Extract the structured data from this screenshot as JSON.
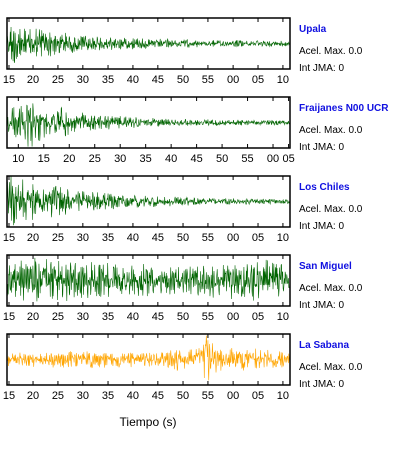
{
  "chart_data": {
    "type": "line",
    "xlabel": "Tiempo (s)",
    "panels": [
      {
        "station": "Upala",
        "accel_label": "Acel. Max. 0.0",
        "jma_label": "Int JMA: 0",
        "color": "#006400",
        "tick_labels": [
          "15",
          "20",
          "25",
          "30",
          "35",
          "40",
          "45",
          "50",
          "55",
          "00",
          "05",
          "10"
        ],
        "envelope": [
          [
            0,
            0.95
          ],
          [
            0.06,
            0.7
          ],
          [
            0.15,
            0.45
          ],
          [
            0.3,
            0.28
          ],
          [
            0.5,
            0.18
          ],
          [
            0.75,
            0.12
          ],
          [
            1,
            0.1
          ]
        ]
      },
      {
        "station": "Fraijanes N00 UCR",
        "accel_label": "Acel. Max. 0.0",
        "jma_label": "Int JMA: 0",
        "color": "#006400",
        "tick_labels": [
          "10",
          "15",
          "20",
          "25",
          "30",
          "35",
          "40",
          "45",
          "50",
          "55",
          "00",
          "05"
        ],
        "envelope": [
          [
            0,
            0.25
          ],
          [
            0.04,
            0.9
          ],
          [
            0.1,
            0.85
          ],
          [
            0.2,
            0.5
          ],
          [
            0.35,
            0.25
          ],
          [
            0.6,
            0.13
          ],
          [
            1,
            0.08
          ]
        ]
      },
      {
        "station": "Los Chiles",
        "accel_label": "Acel. Max. 0.0",
        "jma_label": "Int JMA: 0",
        "color": "#006400",
        "tick_labels": [
          "15",
          "20",
          "25",
          "30",
          "35",
          "40",
          "45",
          "50",
          "55",
          "00",
          "05",
          "10"
        ],
        "envelope": [
          [
            0,
            0.95
          ],
          [
            0.1,
            0.75
          ],
          [
            0.22,
            0.45
          ],
          [
            0.4,
            0.25
          ],
          [
            0.7,
            0.12
          ],
          [
            1,
            0.08
          ]
        ]
      },
      {
        "station": "San Miguel",
        "accel_label": "Acel. Max. 0.0",
        "jma_label": "Int JMA: 0",
        "color": "#006400",
        "tick_labels": [
          "15",
          "20",
          "25",
          "30",
          "35",
          "40",
          "45",
          "50",
          "55",
          "00",
          "05",
          "10"
        ],
        "envelope": [
          [
            0,
            0.55
          ],
          [
            0.1,
            0.85
          ],
          [
            0.2,
            0.75
          ],
          [
            0.4,
            0.6
          ],
          [
            0.6,
            0.55
          ],
          [
            0.8,
            0.65
          ],
          [
            0.9,
            0.8
          ],
          [
            1,
            0.45
          ]
        ]
      },
      {
        "station": "La Sabana",
        "accel_label": "Acel. Max. 0.0",
        "jma_label": "Int JMA: 0",
        "color": "#ffa500",
        "tick_labels": [
          "15",
          "20",
          "25",
          "30",
          "35",
          "40",
          "45",
          "50",
          "55",
          "00",
          "05",
          "10"
        ],
        "envelope": [
          [
            0,
            0.25
          ],
          [
            0.2,
            0.3
          ],
          [
            0.5,
            0.3
          ],
          [
            0.68,
            0.45
          ],
          [
            0.71,
            1
          ],
          [
            0.74,
            0.45
          ],
          [
            0.85,
            0.4
          ],
          [
            1,
            0.3
          ]
        ]
      }
    ]
  }
}
